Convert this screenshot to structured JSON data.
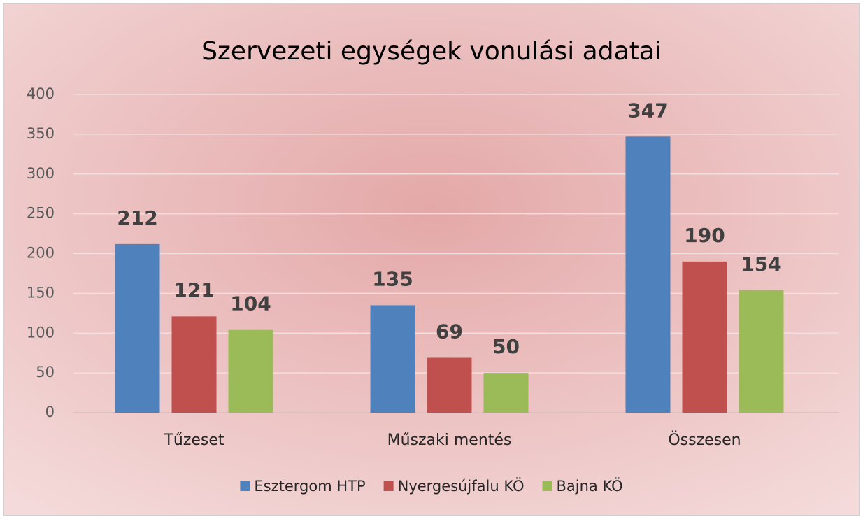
{
  "chart_data": {
    "type": "bar",
    "title": "Szervezeti egységek vonulási adatai",
    "categories": [
      "Tűzeset",
      "Műszaki mentés",
      "Összesen"
    ],
    "series": [
      {
        "name": "Esztergom HTP",
        "color": "#4f81bd",
        "values": [
          212,
          135,
          347
        ]
      },
      {
        "name": "Nyergesújfalu KÖ",
        "color": "#c0504d",
        "values": [
          121,
          69,
          190
        ]
      },
      {
        "name": "Bajna KÖ",
        "color": "#9bbb59",
        "values": [
          104,
          50,
          154
        ]
      }
    ],
    "ylim": [
      0,
      400
    ],
    "yticks": [
      0,
      50,
      100,
      150,
      200,
      250,
      300,
      350,
      400
    ],
    "grid": true,
    "legend": "bottom"
  }
}
